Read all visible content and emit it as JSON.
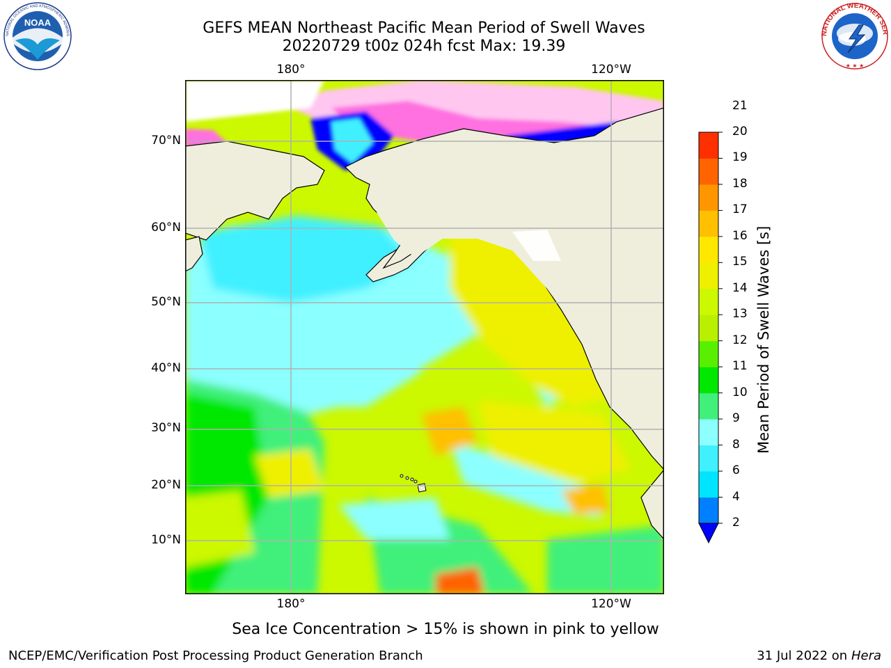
{
  "header": {
    "title_line1": "GEFS MEAN Northeast Pacific Mean Period of Swell Waves",
    "title_line2": "20220729 t00z 024h fcst   Max: 19.39"
  },
  "logos": {
    "left_name": "NOAA",
    "left_ring_text": "NATIONAL OCEANIC AND ATMOSPHERIC ADMINISTRATION · U.S. DEPARTMENT OF COMMERCE",
    "right_ring_text": "NATIONAL WEATHER SERVICE"
  },
  "map": {
    "lon_labels_top": [
      "180°",
      "120°W"
    ],
    "lon_labels_bottom": [
      "180°",
      "120°W"
    ],
    "lat_labels": [
      "70°N",
      "60°N",
      "50°N",
      "40°N",
      "30°N",
      "20°N",
      "10°N"
    ],
    "land_color": "#efeedd",
    "grid_color": "#b0b0b0",
    "high_point_label": "Max: 19.39"
  },
  "colorbar": {
    "title": "Mean Period of Swell Waves [s]",
    "levels": [
      "2",
      "4",
      "6",
      "8",
      "9",
      "10",
      "11",
      "12",
      "13",
      "14",
      "15",
      "16",
      "17",
      "18",
      "19",
      "20",
      "21"
    ],
    "colors": [
      "#0000ff",
      "#0080ff",
      "#00e5ff",
      "#40f0ff",
      "#8cffff",
      "#40f07a",
      "#00e800",
      "#58f000",
      "#b8f000",
      "#ccf800",
      "#eef000",
      "#ffe800",
      "#ffc000",
      "#ff9600",
      "#ff6400",
      "#ff3000",
      "#ff0000"
    ]
  },
  "footer": {
    "note": "Sea Ice Concentration > 15% is shown in pink to yellow",
    "left": "NCEP/EMC/Verification Post Processing Product Generation Branch",
    "right_date": "31 Jul 2022 on ",
    "right_host": "Hera"
  }
}
